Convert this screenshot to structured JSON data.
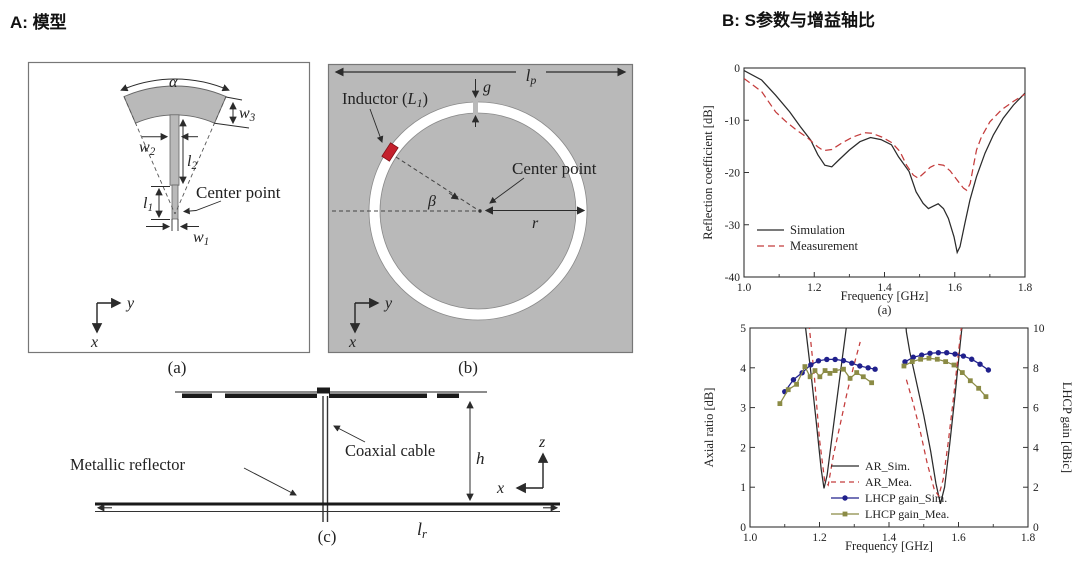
{
  "panels": {
    "a": {
      "title": "A: 模型"
    },
    "b": {
      "title": "B: S参数与增益轴比"
    }
  },
  "colors": {
    "diagram_gray": "#b9b9b9",
    "inductor_red": "#c4202c",
    "simulation_black": "#2b2b2b",
    "measurement_red": "#c43c3c",
    "lhcp_sim_blue": "#20208c",
    "lhcp_mea_olive": "#8b8b45"
  },
  "diagram_a": {
    "caption": "(a)",
    "labels": {
      "alpha": "α",
      "w3": {
        "main": "w",
        "sub": "3"
      },
      "w2": {
        "main": "w",
        "sub": "2"
      },
      "l2": {
        "main": "l",
        "sub": "2"
      },
      "l1": {
        "main": "l",
        "sub": "1"
      },
      "w1": {
        "main": "w",
        "sub": "1"
      },
      "center_point": "Center point",
      "axis_y": "y",
      "axis_x": "x"
    }
  },
  "diagram_b": {
    "caption": "(b)",
    "labels": {
      "lp": {
        "main": "l",
        "sub": "p"
      },
      "g": "g",
      "inductor": {
        "pre": "Inductor (",
        "var": "L",
        "sub": "1",
        "post": ")"
      },
      "center_point": "Center point",
      "beta": "β",
      "r": "r",
      "axis_y": "y",
      "axis_x": "x"
    }
  },
  "diagram_c": {
    "caption": "(c)",
    "labels": {
      "metallic_reflector": "Metallic reflector",
      "coaxial_cable": "Coaxial cable",
      "h": "h",
      "lr": {
        "main": "l",
        "sub": "r"
      },
      "axis_z": "z",
      "axis_x": "x"
    }
  },
  "chart_data": [
    {
      "id": "reflection",
      "type": "line",
      "caption": "(a)",
      "xlabel": "Frequency [GHz]",
      "ylabel": "Reflection coefficient [dB]",
      "xlim": [
        1.0,
        1.8
      ],
      "ylim": [
        -40,
        0
      ],
      "xticks": [
        [
          1.0,
          "1.0"
        ],
        [
          1.2,
          "1.2"
        ],
        [
          1.4,
          "1.4"
        ],
        [
          1.6,
          "1.6"
        ],
        [
          1.8,
          "1.8"
        ]
      ],
      "xticks_minor": [
        1.1,
        1.3,
        1.5,
        1.7
      ],
      "yticks": [
        [
          0,
          "0"
        ],
        [
          -10,
          "-10"
        ],
        [
          -20,
          "-20"
        ],
        [
          -30,
          "-30"
        ],
        [
          -40,
          "-40"
        ]
      ],
      "grid": false,
      "legend_position": "lower-left-inside",
      "series": [
        {
          "name": "Simulation",
          "color": "#2b2b2b",
          "dash": "",
          "marker": "none",
          "axis": "left",
          "segments": [
            {
              "x": [
                1.0,
                1.05,
                1.09,
                1.13,
                1.16,
                1.19,
                1.21,
                1.23,
                1.25,
                1.27,
                1.3,
                1.33,
                1.36,
                1.39,
                1.42,
                1.44,
                1.47,
                1.49,
                1.51,
                1.525,
                1.54,
                1.553,
                1.568,
                1.582,
                1.598,
                1.607,
                1.615,
                1.629,
                1.643,
                1.662,
                1.686,
                1.71,
                1.738,
                1.767,
                1.8
              ],
              "y": [
                -0.5,
                -2.3,
                -5.2,
                -8.4,
                -11.2,
                -13.8,
                -16.6,
                -18.6,
                -18.9,
                -17.6,
                -15.7,
                -14.1,
                -13.3,
                -13.7,
                -14.7,
                -17.0,
                -19.8,
                -23.7,
                -25.9,
                -26.9,
                -26.4,
                -26.0,
                -26.9,
                -28.8,
                -32.3,
                -35.3,
                -34.2,
                -29.7,
                -25.3,
                -20.8,
                -16.3,
                -12.8,
                -9.6,
                -7.1,
                -4.8
              ]
            }
          ]
        },
        {
          "name": "Measurement",
          "color": "#c43c3c",
          "dash": "7,4",
          "marker": "none",
          "axis": "left",
          "segments": [
            {
              "x": [
                1.0,
                1.05,
                1.09,
                1.12,
                1.15,
                1.18,
                1.21,
                1.226,
                1.25,
                1.28,
                1.31,
                1.344,
                1.364,
                1.392,
                1.421,
                1.444,
                1.463,
                1.482,
                1.496,
                1.511,
                1.53,
                1.549,
                1.568,
                1.587,
                1.606,
                1.625,
                1.634,
                1.644,
                1.651,
                1.662,
                1.676,
                1.7,
                1.733,
                1.767,
                1.8
              ],
              "y": [
                -2.0,
                -4.5,
                -8.4,
                -10.3,
                -11.9,
                -13.3,
                -15.1,
                -15.8,
                -15.6,
                -14.3,
                -13.2,
                -12.4,
                -12.5,
                -13.2,
                -14.3,
                -16.0,
                -18.6,
                -20.5,
                -21.1,
                -20.2,
                -19.0,
                -18.4,
                -18.6,
                -19.7,
                -21.4,
                -23.0,
                -23.4,
                -22.1,
                -19.5,
                -15.7,
                -13.2,
                -10.3,
                -8.0,
                -6.4,
                -5.0
              ]
            }
          ]
        }
      ]
    },
    {
      "id": "ar_gain",
      "type": "line",
      "caption": "",
      "xlabel": "Frequency [GHz]",
      "ylabel": "Axial ratio [dB]",
      "ylabel_right": "LHCP gain [dBic]",
      "xlim": [
        1.0,
        1.8
      ],
      "ylim": [
        0,
        5
      ],
      "ylim_right": [
        0,
        10
      ],
      "xticks": [
        [
          1.0,
          "1.0"
        ],
        [
          1.2,
          "1.2"
        ],
        [
          1.4,
          "1.4"
        ],
        [
          1.6,
          "1.6"
        ],
        [
          1.8,
          "1.8"
        ]
      ],
      "xticks_minor": [
        1.1,
        1.3,
        1.5,
        1.7
      ],
      "yticks": [
        [
          0,
          "0"
        ],
        [
          1,
          "1"
        ],
        [
          2,
          "2"
        ],
        [
          3,
          "3"
        ],
        [
          4,
          "4"
        ],
        [
          5,
          "5"
        ]
      ],
      "yticks_right": [
        [
          0,
          "0"
        ],
        [
          2,
          "2"
        ],
        [
          4,
          "4"
        ],
        [
          6,
          "6"
        ],
        [
          8,
          "8"
        ],
        [
          10,
          "10"
        ]
      ],
      "grid": false,
      "legend_position": "lower-center-inside",
      "series": [
        {
          "name": "AR_Sim.",
          "color": "#2b2b2b",
          "dash": "",
          "marker": "none",
          "axis": "left",
          "segments": [
            {
              "x": [
                1.145,
                1.16,
                1.175,
                1.19,
                1.205,
                1.213,
                1.222,
                1.235,
                1.25,
                1.265,
                1.28,
                1.29
              ],
              "y": [
                6,
                5,
                3.9,
                2.7,
                1.45,
                0.97,
                1.3,
                2.2,
                3.2,
                4.2,
                5.2,
                6
              ]
            },
            {
              "x": [
                1.44,
                1.45,
                1.46,
                1.48,
                1.5,
                1.52,
                1.535,
                1.548,
                1.56,
                1.575,
                1.59,
                1.605,
                1.617
              ],
              "y": [
                6,
                4.9,
                4.4,
                3.6,
                2.8,
                1.9,
                1.1,
                0.58,
                1.0,
                2.1,
                3.3,
                4.6,
                5.6
              ]
            }
          ]
        },
        {
          "name": "AR_Mea.",
          "color": "#c43c3c",
          "dash": "5,4",
          "marker": "none",
          "axis": "left",
          "segments": [
            {
              "x": [
                1.16,
                1.172,
                1.185,
                1.2,
                1.215,
                1.225,
                1.24,
                1.26,
                1.28,
                1.3,
                1.317
              ],
              "y": [
                6,
                4.9,
                3.8,
                2.2,
                1.15,
                1.05,
                1.8,
                2.6,
                3.4,
                4.1,
                4.65
              ]
            },
            {
              "x": [
                1.45,
                1.47,
                1.49,
                1.51,
                1.53,
                1.543,
                1.556,
                1.57,
                1.585,
                1.6,
                1.612
              ],
              "y": [
                3.7,
                3.1,
                2.4,
                1.6,
                0.95,
                0.78,
                1.2,
                2.1,
                3.2,
                4.4,
                5.3
              ]
            }
          ]
        },
        {
          "name": "LHCP gain_Sim.",
          "color": "#20208c",
          "dash": "",
          "marker": "circle",
          "axis": "right",
          "segments": [
            {
              "x": [
                1.1,
                1.125,
                1.15,
                1.175,
                1.197,
                1.221,
                1.245,
                1.269,
                1.293,
                1.316,
                1.34,
                1.36
              ],
              "y": [
                6.8,
                7.4,
                7.75,
                8.15,
                8.35,
                8.42,
                8.42,
                8.36,
                8.23,
                8.09,
                8.0,
                7.93
              ]
            },
            {
              "x": [
                1.446,
                1.47,
                1.494,
                1.518,
                1.542,
                1.566,
                1.59,
                1.614,
                1.638,
                1.662,
                1.686
              ],
              "y": [
                8.3,
                8.53,
                8.64,
                8.73,
                8.76,
                8.76,
                8.69,
                8.59,
                8.43,
                8.18,
                7.89
              ]
            }
          ]
        },
        {
          "name": "LHCP gain_Mea.",
          "color": "#8b8b45",
          "dash": "",
          "marker": "square",
          "axis": "right",
          "segments": [
            {
              "x": [
                1.086,
                1.11,
                1.134,
                1.158,
                1.173,
                1.187,
                1.201,
                1.216,
                1.23,
                1.245,
                1.269,
                1.288,
                1.307,
                1.326,
                1.35
              ],
              "y": [
                6.2,
                6.9,
                7.17,
                8.06,
                7.55,
                7.86,
                7.55,
                7.86,
                7.72,
                7.86,
                7.93,
                7.47,
                7.76,
                7.55,
                7.25
              ]
            },
            {
              "x": [
                1.443,
                1.467,
                1.491,
                1.515,
                1.539,
                1.563,
                1.587,
                1.611,
                1.634,
                1.658,
                1.679
              ],
              "y": [
                8.09,
                8.31,
                8.43,
                8.48,
                8.43,
                8.31,
                8.14,
                7.76,
                7.35,
                6.97,
                6.55
              ]
            }
          ]
        }
      ]
    }
  ]
}
